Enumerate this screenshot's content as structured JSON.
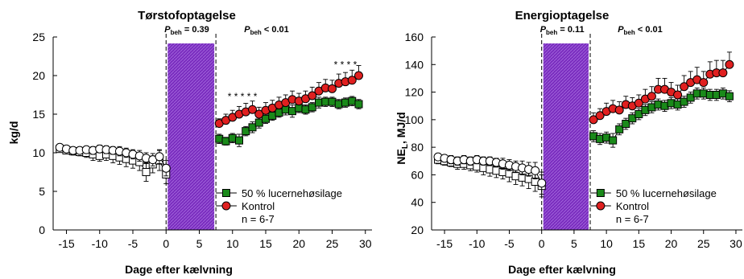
{
  "chart_data": [
    {
      "type": "line",
      "title": "Tørstofoptagelse",
      "xlabel": "Dage efter kælvning",
      "ylabel": "kg/d",
      "xlim": [
        -17,
        31
      ],
      "ylim": [
        0,
        25
      ],
      "xticks": [
        -15,
        -10,
        -5,
        0,
        5,
        10,
        15,
        20,
        25,
        30
      ],
      "yticks": [
        0,
        5,
        10,
        15,
        20,
        25
      ],
      "shaded_region": [
        0,
        7.5
      ],
      "p_annotations": [
        {
          "prefix": "P",
          "sub": "beh",
          "text": " = 0.39",
          "x": 0
        },
        {
          "prefix": "P",
          "sub": "beh",
          "text": " < 0.01",
          "x": 12
        }
      ],
      "series": [
        {
          "name": "50 % lucernehøsilage",
          "color": "#1a8a1a",
          "marker": "square",
          "pre": {
            "x": [
              -16,
              -15,
              -14,
              -13,
              -12,
              -11,
              -10,
              -9,
              -8,
              -7,
              -6,
              -5,
              -4,
              -3,
              -2,
              -1,
              0
            ],
            "y": [
              10.5,
              10.3,
              10.2,
              10.1,
              10.0,
              9.8,
              9.6,
              9.8,
              9.6,
              9.4,
              9.2,
              9.0,
              8.8,
              7.5,
              8.5,
              9.0,
              7.2
            ],
            "err": [
              0.3,
              0.4,
              0.5,
              0.5,
              0.6,
              0.8,
              0.7,
              0.8,
              0.9,
              0.9,
              1.0,
              1.0,
              1.1,
              1.2,
              1.1,
              1.3,
              1.2
            ]
          },
          "post": {
            "x": [
              8,
              9,
              10,
              11,
              12,
              13,
              14,
              15,
              16,
              17,
              18,
              19,
              20,
              21,
              22,
              23,
              24,
              25,
              26,
              27,
              28,
              29
            ],
            "y": [
              11.8,
              11.5,
              11.9,
              11.6,
              12.8,
              13.3,
              13.9,
              14.4,
              14.8,
              15.2,
              15.6,
              15.4,
              15.8,
              15.6,
              15.9,
              16.5,
              16.6,
              16.6,
              16.3,
              16.5,
              16.7,
              16.3
            ],
            "err": [
              0.6,
              0.5,
              0.6,
              0.8,
              0.6,
              0.7,
              0.7,
              0.6,
              0.6,
              0.6,
              0.7,
              0.8,
              0.6,
              0.6,
              0.6,
              0.7,
              0.6,
              0.6,
              0.6,
              0.6,
              0.6,
              0.6
            ]
          }
        },
        {
          "name": "Kontrol",
          "color": "#e02020",
          "marker": "circle",
          "pre": {
            "x": [
              -16,
              -15,
              -14,
              -13,
              -12,
              -11,
              -10,
              -9,
              -8,
              -7,
              -6,
              -5,
              -4,
              -3,
              -2,
              -1,
              0
            ],
            "y": [
              10.7,
              10.5,
              10.3,
              10.3,
              10.4,
              10.3,
              10.5,
              10.4,
              10.3,
              10.2,
              10.0,
              9.8,
              9.6,
              9.3,
              9.1,
              9.5,
              8.0
            ],
            "err": [
              0.3,
              0.3,
              0.4,
              0.4,
              0.4,
              0.5,
              0.5,
              0.5,
              0.5,
              0.6,
              0.6,
              0.6,
              0.7,
              0.7,
              0.8,
              0.9,
              1.0
            ]
          },
          "post": {
            "x": [
              8,
              9,
              10,
              11,
              12,
              13,
              14,
              15,
              16,
              17,
              18,
              19,
              20,
              21,
              22,
              23,
              24,
              25,
              26,
              27,
              28,
              29
            ],
            "y": [
              13.8,
              14.2,
              14.6,
              15.0,
              15.3,
              15.6,
              15.0,
              15.5,
              15.8,
              16.2,
              16.5,
              16.9,
              16.7,
              17.0,
              17.4,
              18.0,
              18.4,
              18.3,
              19.0,
              19.2,
              19.4,
              20.0
            ],
            "err": [
              0.6,
              0.8,
              0.9,
              1.0,
              1.1,
              1.1,
              0.9,
              1.0,
              1.0,
              1.0,
              1.0,
              1.1,
              1.0,
              1.0,
              1.1,
              1.1,
              1.1,
              1.1,
              1.2,
              1.2,
              1.3,
              1.3
            ]
          }
        }
      ],
      "stars": [
        {
          "x": 11.5,
          "y": 16.9,
          "text": "* * * * *"
        },
        {
          "x": 27.0,
          "y": 21.0,
          "text": "* * * *"
        }
      ],
      "legend": {
        "entries": [
          "50 % lucernehøsilage",
          "Kontrol"
        ],
        "note": "n = 6-7",
        "position": "lower-right"
      }
    },
    {
      "type": "line",
      "title": "Energioptagelse",
      "xlabel": "Dage efter kælvning",
      "ylabel_main": "NE",
      "ylabel_sub": "L",
      "ylabel_rest": ", MJ/d",
      "xlim": [
        -17,
        31
      ],
      "ylim": [
        20,
        160
      ],
      "xticks": [
        -15,
        -10,
        -5,
        0,
        5,
        10,
        15,
        20,
        25,
        30
      ],
      "yticks": [
        20,
        40,
        60,
        80,
        100,
        120,
        140,
        160
      ],
      "shaded_region": [
        0,
        7.5
      ],
      "p_annotations": [
        {
          "prefix": "P",
          "sub": "beh",
          "text": " = 0.11",
          "x": 0
        },
        {
          "prefix": "P",
          "sub": "beh",
          "text": " < 0.01",
          "x": 12
        }
      ],
      "series": [
        {
          "name": "50 % lucernehøsilage",
          "color": "#1a8a1a",
          "marker": "square",
          "pre": {
            "x": [
              -16,
              -15,
              -14,
              -13,
              -12,
              -11,
              -10,
              -9,
              -8,
              -7,
              -6,
              -5,
              -4,
              -3,
              -2,
              -1,
              0
            ],
            "y": [
              71,
              70,
              69,
              68,
              68,
              67,
              66,
              65,
              64,
              63,
              62,
              61,
              59,
              58,
              57,
              55,
              52
            ],
            "err": [
              3,
              3,
              3,
              4,
              4,
              4,
              4,
              5,
              5,
              5,
              5,
              6,
              6,
              6,
              7,
              7,
              8
            ]
          },
          "post": {
            "x": [
              8,
              9,
              10,
              11,
              12,
              13,
              14,
              15,
              16,
              17,
              18,
              19,
              20,
              21,
              22,
              23,
              24,
              25,
              26,
              27,
              28,
              29
            ],
            "y": [
              88,
              86,
              87,
              85,
              93,
              97,
              101,
              104,
              107,
              109,
              111,
              110,
              112,
              111,
              113,
              116,
              119,
              119,
              118,
              118,
              119,
              117
            ],
            "err": [
              4,
              4,
              4,
              5,
              4,
              4,
              4,
              4,
              4,
              4,
              4,
              4,
              4,
              4,
              4,
              4,
              4,
              4,
              4,
              4,
              4,
              4
            ]
          }
        },
        {
          "name": "Kontrol",
          "color": "#e02020",
          "marker": "circle",
          "pre": {
            "x": [
              -16,
              -15,
              -14,
              -13,
              -12,
              -11,
              -10,
              -9,
              -8,
              -7,
              -6,
              -5,
              -4,
              -3,
              -2,
              -1,
              0
            ],
            "y": [
              73,
              72,
              71,
              70,
              71,
              70,
              71,
              70,
              70,
              69,
              68,
              67,
              66,
              65,
              64,
              63,
              54
            ],
            "err": [
              2,
              2,
              3,
              3,
              3,
              3,
              3,
              3,
              3,
              3,
              4,
              4,
              4,
              5,
              5,
              6,
              8
            ]
          },
          "post": {
            "x": [
              8,
              9,
              10,
              11,
              12,
              13,
              14,
              15,
              16,
              17,
              18,
              19,
              20,
              21,
              22,
              23,
              24,
              25,
              26,
              27,
              28,
              29
            ],
            "y": [
              100,
              103,
              106,
              108,
              107,
              111,
              110,
              112,
              115,
              117,
              122,
              122,
              120,
              118,
              124,
              127,
              129,
              127,
              133,
              134,
              134,
              140
            ],
            "err": [
              5,
              5,
              6,
              6,
              6,
              6,
              6,
              6,
              7,
              7,
              8,
              8,
              7,
              7,
              8,
              8,
              9,
              8,
              9,
              9,
              9,
              9
            ]
          }
        }
      ],
      "legend": {
        "entries": [
          "50 % lucernehøsilage",
          "Kontrol"
        ],
        "note": "n = 6-7",
        "position": "lower-right"
      }
    }
  ]
}
